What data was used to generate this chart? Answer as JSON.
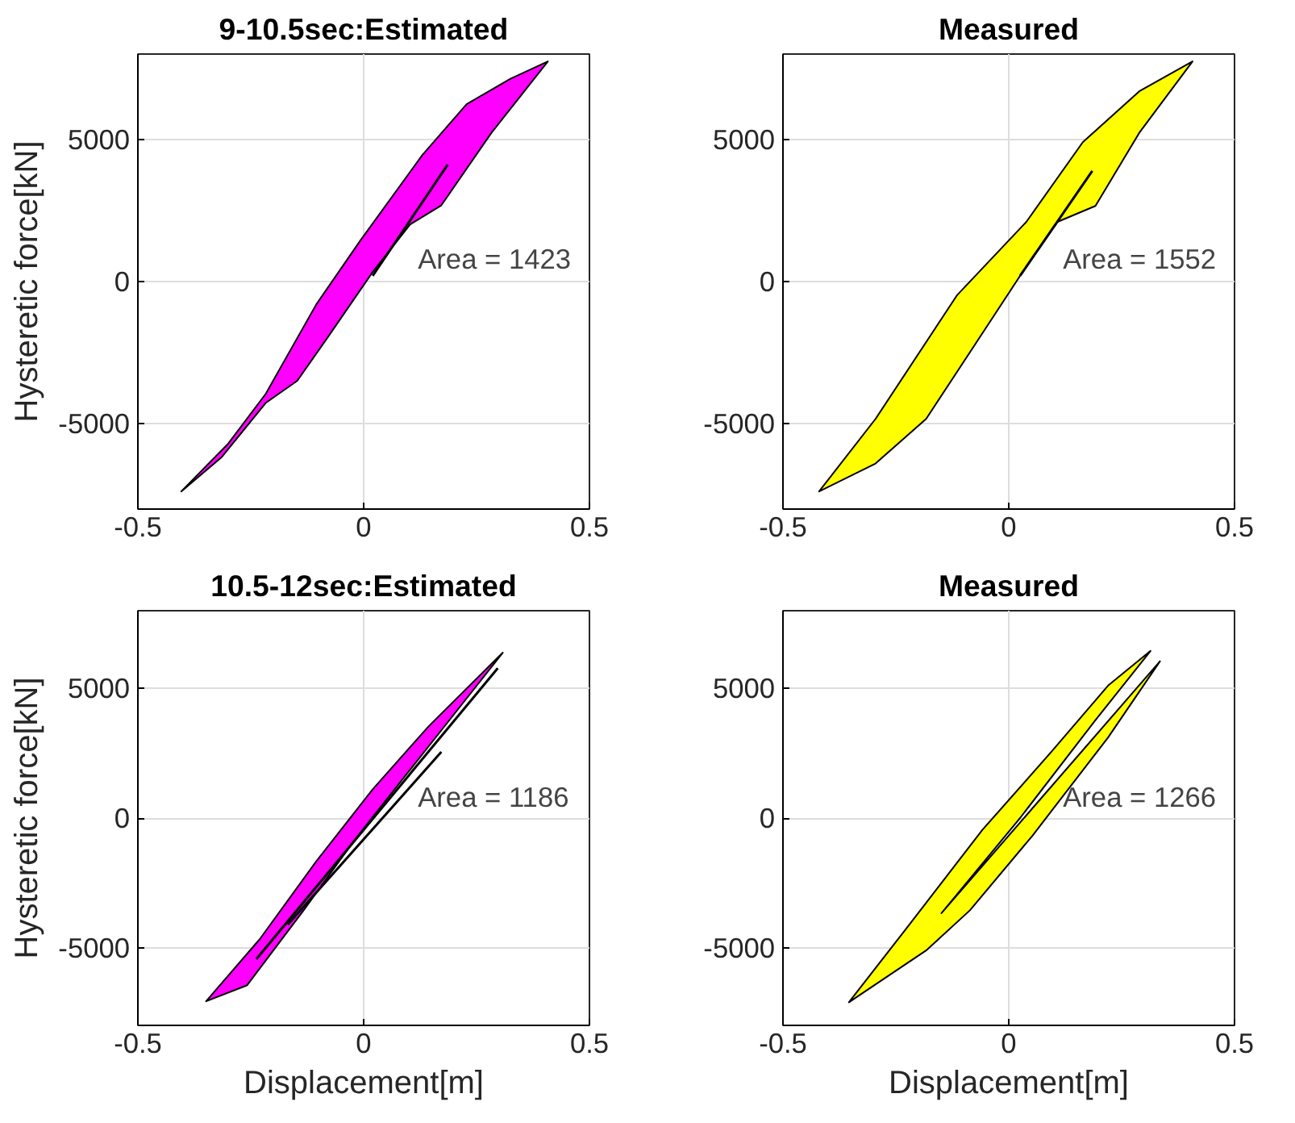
{
  "chart_data": [
    {
      "type": "area",
      "title": "9-10.5sec:Estimated",
      "ylabel": "Hysteretic force[kN]",
      "xlim": [
        -0.5,
        0.5
      ],
      "ylim": [
        -8000,
        8000
      ],
      "xticks": [
        -0.5,
        0,
        0.5
      ],
      "yticks": [
        -5000,
        0,
        5000
      ],
      "grid": true,
      "annotations": [
        "Area = 1423"
      ],
      "series": [
        {
          "color": "#ff00ff",
          "x": [
            -0.404,
            -0.3,
            -0.217,
            -0.105,
            -0.008,
            0.13,
            0.228,
            0.325,
            0.408,
            0.283,
            0.172,
            0.103,
            0.02,
            -0.078,
            -0.147,
            -0.217,
            -0.314
          ],
          "values": [
            -7380,
            -5700,
            -3950,
            -805,
            1430,
            4450,
            6240,
            7130,
            7740,
            5230,
            2680,
            2010,
            335,
            -1925,
            -3490,
            -4270,
            -6170
          ]
        },
        {
          "type": "line",
          "color": "#000000",
          "x": [
            0.02,
            0.186
          ],
          "values": [
            200,
            4110
          ]
        }
      ]
    },
    {
      "type": "area",
      "title": "Measured",
      "xlim": [
        -0.5,
        0.5
      ],
      "ylim": [
        -8000,
        8000
      ],
      "xticks": [
        -0.5,
        0,
        0.5
      ],
      "yticks": [
        -5000,
        0,
        5000
      ],
      "grid": true,
      "annotations": [
        "Area = 1552"
      ],
      "series": [
        {
          "color": "#ffff00",
          "x": [
            -0.42,
            -0.295,
            -0.114,
            0.039,
            0.164,
            0.289,
            0.407,
            0.289,
            0.192,
            0.108,
            0.025,
            -0.072,
            -0.183,
            -0.295
          ],
          "values": [
            -7380,
            -4830,
            -470,
            2100,
            4900,
            6690,
            7740,
            5230,
            2660,
            2100,
            200,
            -2150,
            -4830,
            -6400
          ]
        },
        {
          "type": "line",
          "color": "#000000",
          "x": [
            0.025,
            0.185
          ],
          "values": [
            200,
            3890
          ]
        }
      ]
    },
    {
      "type": "area",
      "title": "10.5-12sec:Estimated",
      "xlabel": "Displacement[m]",
      "ylabel": "Hysteretic force[kN]",
      "xlim": [
        -0.5,
        0.5
      ],
      "ylim": [
        -8000,
        8000
      ],
      "xticks": [
        -0.5,
        0,
        0.5
      ],
      "yticks": [
        -5000,
        0,
        5000
      ],
      "grid": true,
      "annotations": [
        "Area = 1186"
      ],
      "series": [
        {
          "color": "#ff00ff",
          "x": [
            -0.349,
            -0.23,
            -0.105,
            0.02,
            0.145,
            0.308,
            0.2,
            0.089,
            -0.022,
            -0.133,
            -0.258
          ],
          "values": [
            -7070,
            -4670,
            -1670,
            1110,
            3560,
            6380,
            4000,
            1560,
            -890,
            -3560,
            -6450
          ]
        },
        {
          "type": "line",
          "color": "#000000",
          "x": [
            -0.2375,
            0.297
          ],
          "values": [
            -5440,
            5780
          ]
        },
        {
          "type": "line",
          "color": "#000000",
          "x": [
            -0.168,
            0.172
          ],
          "values": [
            -4110,
            2550
          ]
        }
      ]
    },
    {
      "type": "area",
      "title": "Measured",
      "xlabel": "Displacement[m]",
      "xlim": [
        -0.5,
        0.5
      ],
      "ylim": [
        -8000,
        8000
      ],
      "xticks": [
        -0.5,
        0,
        0.5
      ],
      "yticks": [
        -5000,
        0,
        5000
      ],
      "grid": true,
      "annotations": [
        "Area = 1266"
      ],
      "series": [
        {
          "color": "#ffff00",
          "x": [
            -0.354,
            -0.225,
            -0.058,
            0.094,
            0.22,
            0.314,
            0.192,
            0.025,
            -0.149,
            0.335,
            0.22,
            0.053,
            -0.086,
            -0.183
          ],
          "values": [
            -7110,
            -4220,
            -450,
            2550,
            5110,
            6450,
            3780,
            0,
            -3670,
            6050,
            3110,
            -670,
            -3560,
            -5110
          ]
        }
      ]
    }
  ]
}
